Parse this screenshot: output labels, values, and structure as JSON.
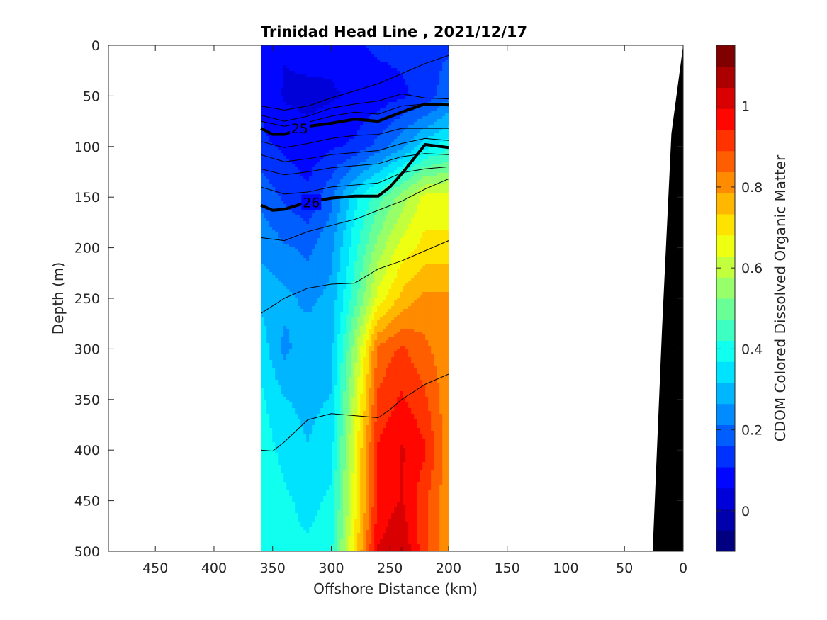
{
  "chart_data": {
    "type": "heatmap",
    "title": "Trinidad Head Line , 2021/12/17",
    "xlabel": "Offshore Distance (km)",
    "ylabel": "Depth (m)",
    "colorbar_label": "CDOM Colored Dissolved Organic Matter",
    "xlim": [
      490,
      0
    ],
    "ylim": [
      500,
      0
    ],
    "x_reversed": true,
    "y_reversed": true,
    "x_ticks": [
      450,
      400,
      350,
      300,
      250,
      200,
      150,
      100,
      50,
      0
    ],
    "x_tick_labels": [
      "450",
      "400",
      "350",
      "300",
      "250",
      "200",
      "150",
      "100",
      "50",
      "0"
    ],
    "y_ticks": [
      0,
      50,
      100,
      150,
      200,
      250,
      300,
      350,
      400,
      450,
      500
    ],
    "y_tick_labels": [
      "0",
      "50",
      "100",
      "150",
      "200",
      "250",
      "300",
      "350",
      "400",
      "450",
      "500"
    ],
    "colorbar": {
      "range": [
        -0.1,
        1.15
      ],
      "ticks": [
        0,
        0.2,
        0.4,
        0.6,
        0.8,
        1
      ],
      "tick_labels": [
        "0",
        "0.2",
        "0.4",
        "0.6",
        "0.8",
        "1"
      ],
      "colormap": "jet"
    },
    "data_extent": {
      "x": [
        360,
        200
      ],
      "depth": [
        0,
        500
      ]
    },
    "cdom_field": {
      "x": [
        360,
        340,
        320,
        300,
        280,
        260,
        240,
        220,
        200
      ],
      "depth": [
        0,
        50,
        100,
        150,
        200,
        250,
        300,
        350,
        400,
        450,
        500
      ],
      "values": [
        [
          0.1,
          0.06,
          0.08,
          0.07,
          0.1,
          0.12,
          0.12,
          0.14,
          0.15
        ],
        [
          0.1,
          0.05,
          0.04,
          0.05,
          0.06,
          0.08,
          0.1,
          0.12,
          0.2
        ],
        [
          0.12,
          0.1,
          0.08,
          0.1,
          0.12,
          0.18,
          0.25,
          0.35,
          0.4
        ],
        [
          0.2,
          0.15,
          0.12,
          0.2,
          0.35,
          0.45,
          0.55,
          0.65,
          0.65
        ],
        [
          0.25,
          0.22,
          0.2,
          0.25,
          0.4,
          0.55,
          0.65,
          0.7,
          0.7
        ],
        [
          0.3,
          0.28,
          0.25,
          0.28,
          0.45,
          0.65,
          0.75,
          0.8,
          0.8
        ],
        [
          0.35,
          0.25,
          0.3,
          0.3,
          0.55,
          0.85,
          0.9,
          0.85,
          0.8
        ],
        [
          0.38,
          0.32,
          0.3,
          0.32,
          0.6,
          0.9,
          0.95,
          0.9,
          0.8
        ],
        [
          0.4,
          0.35,
          0.32,
          0.35,
          0.65,
          0.95,
          1.0,
          0.95,
          0.8
        ],
        [
          0.42,
          0.38,
          0.35,
          0.38,
          0.65,
          0.95,
          1.0,
          0.9,
          0.8
        ],
        [
          0.4,
          0.38,
          0.38,
          0.4,
          0.7,
          1.0,
          1.05,
          0.9,
          0.8
        ]
      ]
    },
    "contour_labels": [
      {
        "text": "25",
        "x": 327,
        "depth": 82
      },
      {
        "text": "26",
        "x": 317,
        "depth": 155
      }
    ],
    "contours_bold": [
      {
        "level": "25",
        "x": [
          360,
          350,
          340,
          320,
          300,
          280,
          260,
          240,
          220,
          200
        ],
        "depth": [
          82,
          88,
          88,
          80,
          77,
          73,
          75,
          66,
          58,
          59
        ]
      },
      {
        "level": "26",
        "x": [
          360,
          350,
          340,
          320,
          300,
          280,
          260,
          250,
          240,
          220,
          200
        ],
        "depth": [
          158,
          163,
          162,
          155,
          151,
          149,
          149,
          140,
          127,
          98,
          101
        ]
      }
    ],
    "contours_thin": [
      {
        "x": [
          360,
          340,
          320,
          300,
          280,
          260,
          240,
          220,
          200
        ],
        "depth": [
          60,
          64,
          60,
          52,
          45,
          38,
          28,
          18,
          10
        ]
      },
      {
        "x": [
          360,
          340,
          320,
          300,
          280,
          260,
          240,
          220,
          200
        ],
        "depth": [
          69,
          75,
          70,
          62,
          58,
          55,
          48,
          52,
          53
        ]
      },
      {
        "x": [
          360,
          340,
          320,
          300,
          280,
          260,
          240,
          220,
          200
        ],
        "depth": [
          75,
          80,
          76,
          70,
          66,
          68,
          60,
          58,
          58
        ]
      },
      {
        "x": [
          360,
          340,
          320,
          300,
          280,
          260,
          240,
          220,
          200
        ],
        "depth": [
          95,
          101,
          97,
          92,
          89,
          88,
          82,
          82,
          82
        ]
      },
      {
        "x": [
          360,
          340,
          320,
          300,
          280,
          260,
          240,
          220,
          200
        ],
        "depth": [
          108,
          115,
          112,
          108,
          106,
          104,
          97,
          92,
          94
        ]
      },
      {
        "x": [
          360,
          340,
          320,
          300,
          280,
          260,
          240,
          220,
          200
        ],
        "depth": [
          122,
          128,
          125,
          121,
          119,
          117,
          110,
          107,
          108
        ]
      },
      {
        "x": [
          360,
          340,
          320,
          300,
          280,
          260,
          240,
          220,
          200
        ],
        "depth": [
          140,
          147,
          145,
          140,
          138,
          136,
          126,
          122,
          120
        ]
      },
      {
        "x": [
          360,
          340,
          320,
          300,
          280,
          260,
          240,
          220,
          200
        ],
        "depth": [
          190,
          193,
          184,
          178,
          172,
          163,
          154,
          142,
          132
        ]
      },
      {
        "x": [
          360,
          340,
          320,
          300,
          280,
          260,
          240,
          220,
          200
        ],
        "depth": [
          265,
          250,
          240,
          236,
          235,
          221,
          213,
          203,
          193
        ]
      },
      {
        "x": [
          360,
          350,
          340,
          320,
          300,
          280,
          260,
          250,
          240,
          220,
          200
        ],
        "depth": [
          400,
          401,
          392,
          370,
          364,
          366,
          368,
          360,
          350,
          335,
          325
        ]
      }
    ],
    "bathymetry": {
      "color": "#000000",
      "surface_x": 0,
      "points": [
        {
          "x": 0,
          "depth": 0
        },
        {
          "x": 10,
          "depth": 87
        },
        {
          "x": 18,
          "depth": 280
        },
        {
          "x": 26,
          "depth": 500
        }
      ]
    }
  }
}
